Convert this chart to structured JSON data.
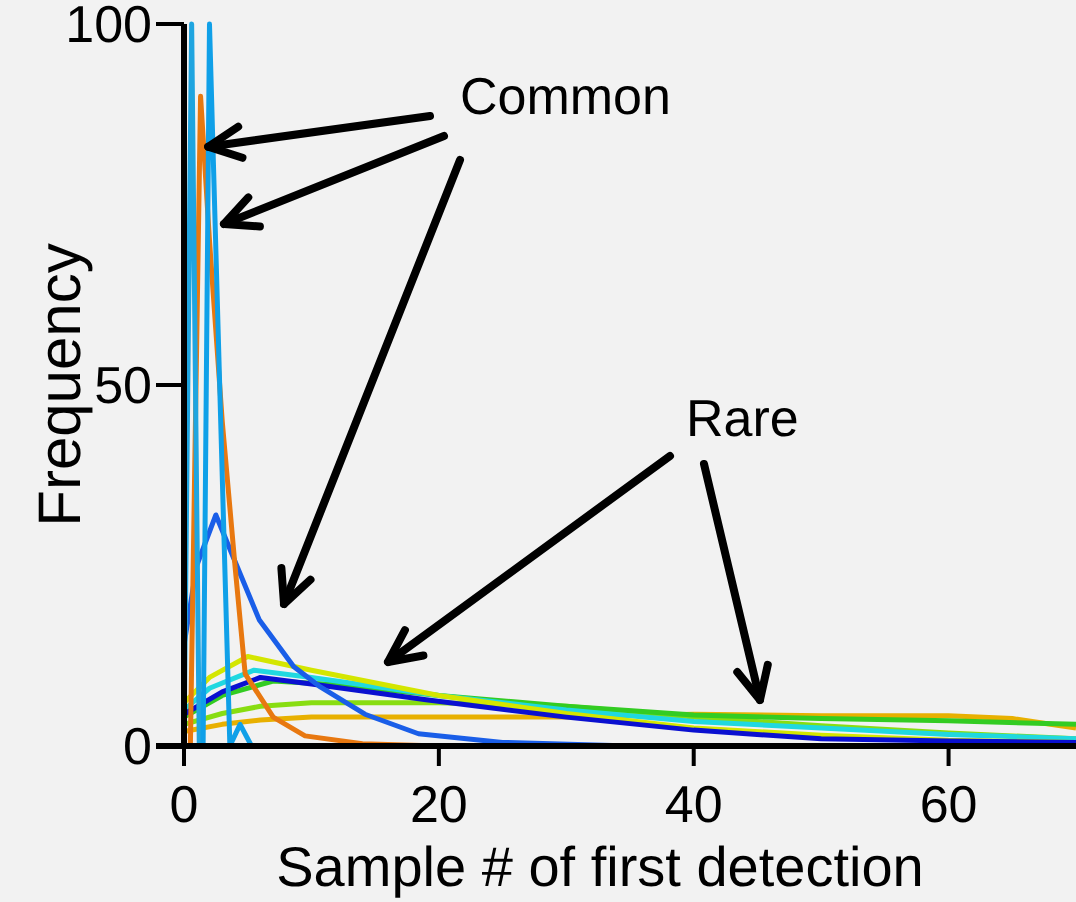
{
  "chart_data": {
    "type": "line",
    "xlabel": "Sample # of first detection",
    "ylabel": "Frequency",
    "xlim": [
      0,
      70
    ],
    "ylim": [
      0,
      100
    ],
    "xticks": [
      0,
      20,
      40,
      60
    ],
    "yticks": [
      0,
      50,
      100
    ],
    "grid": false,
    "marker": "none",
    "line_style": "solid",
    "annotations": [
      {
        "text": "Common",
        "x": 1.9,
        "y": 83
      },
      "Rare"
    ],
    "series": [
      {
        "color": "#e8b000",
        "x": [
          0,
          3,
          6,
          10,
          20,
          30,
          40,
          50,
          60,
          65,
          70
        ],
        "values": [
          2,
          3,
          3.6,
          4,
          4,
          4,
          4.4,
          4.2,
          4.2,
          3.8,
          2.5
        ]
      },
      {
        "color": "#88dd11",
        "x": [
          0,
          3,
          6,
          10,
          20,
          30,
          40,
          50,
          60,
          70
        ],
        "values": [
          3,
          4.5,
          5.5,
          6,
          6,
          5.5,
          4,
          2.8,
          1.8,
          1
        ]
      },
      {
        "color": "#33cc22",
        "x": [
          0,
          3,
          7,
          12,
          20,
          30,
          40,
          50,
          60,
          70
        ],
        "values": [
          4,
          7,
          9,
          8.5,
          7,
          5.5,
          4.3,
          3.8,
          3.5,
          3
        ]
      },
      {
        "color": "#20d8e0",
        "x": [
          0,
          2,
          5.5,
          10,
          20,
          30,
          40,
          50,
          60,
          70
        ],
        "values": [
          5,
          8,
          10.5,
          9.5,
          7,
          5,
          3.4,
          2.5,
          1.6,
          1
        ]
      },
      {
        "color": "#d4e600",
        "x": [
          0,
          2,
          5,
          10,
          20,
          30,
          40,
          50,
          60,
          70
        ],
        "values": [
          6,
          9.5,
          12.4,
          10.5,
          7,
          4.5,
          2.5,
          1.5,
          0.8,
          0.5
        ]
      },
      {
        "color": "#0a10d0",
        "x": [
          0,
          3,
          6,
          10,
          19,
          30,
          40,
          50,
          60,
          70
        ],
        "values": [
          4.4,
          7.5,
          9.5,
          8.6,
          6.4,
          4,
          2.2,
          1,
          0.7,
          0.5
        ]
      },
      {
        "color": "#1a5ee8",
        "x": [
          0,
          1,
          2.5,
          3.9,
          5.9,
          8.6,
          10.6,
          14.2,
          18.4,
          25,
          35,
          70
        ],
        "values": [
          14,
          25,
          32,
          26,
          17.5,
          11,
          8.3,
          4.4,
          1.7,
          0.5,
          0,
          0
        ]
      },
      {
        "color": "#e87810",
        "x": [
          0.5,
          1.3,
          2,
          3,
          4,
          4.8,
          7,
          9.5,
          14,
          20,
          70
        ],
        "values": [
          0,
          90,
          70,
          45,
          25,
          10,
          4,
          1.4,
          0.3,
          0,
          0
        ]
      },
      {
        "color": "#1fa5e0",
        "x": [
          0,
          0.6,
          1.2
        ],
        "values": [
          0,
          100,
          0
        ]
      },
      {
        "color": "#10a0e8",
        "x": [
          1.5,
          2,
          3.6,
          4.4,
          5.3,
          70
        ],
        "values": [
          0,
          100,
          0,
          3,
          0,
          0
        ]
      }
    ]
  }
}
